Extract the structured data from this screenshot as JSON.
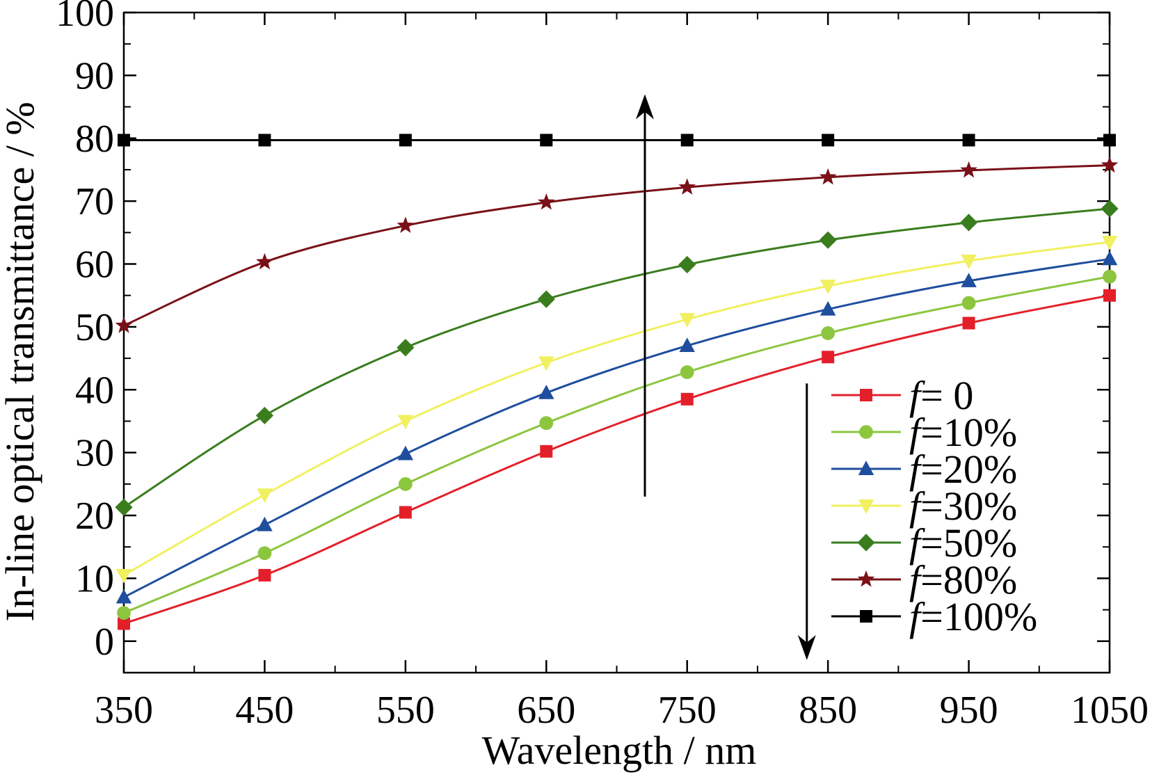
{
  "chart_data": {
    "type": "line",
    "xlabel": "Wavelength / nm",
    "ylabel": "In-line optical transmittance / %",
    "xlim": [
      350,
      1050
    ],
    "ylim": [
      -5,
      100
    ],
    "x_ticks": [
      350,
      450,
      550,
      650,
      750,
      850,
      950,
      1050
    ],
    "y_ticks": [
      0,
      10,
      20,
      30,
      40,
      50,
      60,
      70,
      80,
      90,
      100
    ],
    "x": [
      350,
      450,
      550,
      650,
      750,
      850,
      950,
      1050
    ],
    "grid": false,
    "legend_position": "lower-right",
    "legend_prefix": "f",
    "series": [
      {
        "name": "f= 0",
        "label": "= 0",
        "color": "#e3202a",
        "marker": "square",
        "values": [
          2.8,
          10.5,
          20.5,
          30.2,
          38.5,
          45.2,
          50.6,
          55.0
        ]
      },
      {
        "name": "f=10%",
        "label": "=10%",
        "color": "#8cc63f",
        "marker": "circle",
        "values": [
          4.5,
          14.0,
          25.0,
          34.7,
          42.8,
          49.0,
          53.8,
          58.0
        ]
      },
      {
        "name": "f=20%",
        "label": "=20%",
        "color": "#1f4e9e",
        "marker": "triangle-up",
        "values": [
          7.0,
          18.5,
          29.8,
          39.5,
          47.0,
          52.8,
          57.3,
          60.8
        ]
      },
      {
        "name": "f=30%",
        "label": "=30%",
        "color": "#f0f060",
        "marker": "triangle-down",
        "values": [
          10.5,
          23.3,
          35.0,
          44.3,
          51.2,
          56.5,
          60.5,
          63.5
        ]
      },
      {
        "name": "f=50%",
        "label": "=50%",
        "color": "#3a7d1e",
        "marker": "diamond",
        "values": [
          21.3,
          35.9,
          46.7,
          54.4,
          59.9,
          63.8,
          66.6,
          68.8
        ]
      },
      {
        "name": "f=80%",
        "label": "=80%",
        "color": "#7a1018",
        "marker": "star",
        "values": [
          50.2,
          60.3,
          66.1,
          69.8,
          72.2,
          73.8,
          74.9,
          75.7
        ]
      },
      {
        "name": "f=100%",
        "label": "=100%",
        "color": "#000000",
        "marker": "square",
        "values": [
          79.7,
          79.7,
          79.7,
          79.7,
          79.7,
          79.7,
          79.7,
          79.7
        ]
      }
    ],
    "annotations": [
      {
        "type": "arrow",
        "direction": "up",
        "x": 720,
        "y_from": 23,
        "y_to": 87
      },
      {
        "type": "arrow",
        "direction": "down",
        "x": 835,
        "y_from": 41,
        "y_to": -3
      }
    ]
  }
}
